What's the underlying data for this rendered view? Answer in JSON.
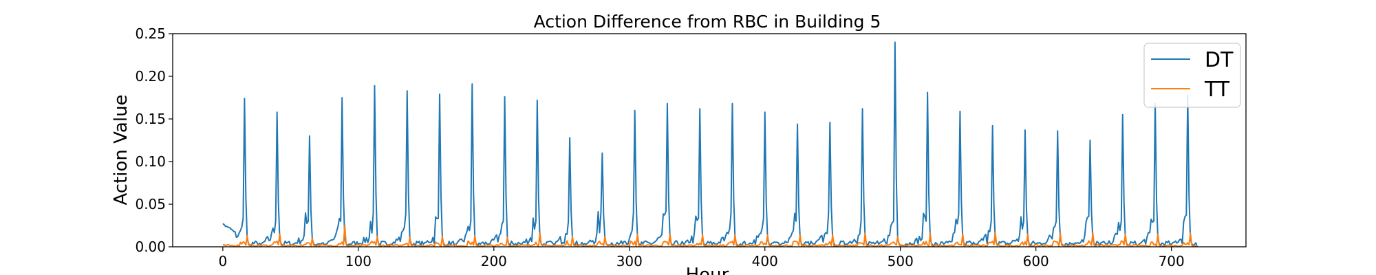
{
  "chart_data": {
    "type": "line",
    "title": "Action Difference from RBC in Building 5",
    "xlabel": "Hour",
    "ylabel": "Action Value",
    "xlim": [
      -37,
      755
    ],
    "ylim": [
      0,
      0.25
    ],
    "x_ticks": [
      "0",
      "100",
      "200",
      "300",
      "400",
      "500",
      "600",
      "700"
    ],
    "y_ticks": [
      "0.00",
      "0.05",
      "0.10",
      "0.15",
      "0.20",
      "0.25"
    ],
    "grid": false,
    "legend_position": "top-right",
    "x_range": [
      0,
      719
    ],
    "peaks": {
      "DT": [
        {
          "x": 16,
          "y": 0.174
        },
        {
          "x": 40,
          "y": 0.158
        },
        {
          "x": 64,
          "y": 0.13
        },
        {
          "x": 88,
          "y": 0.175
        },
        {
          "x": 112,
          "y": 0.189
        },
        {
          "x": 136,
          "y": 0.183
        },
        {
          "x": 160,
          "y": 0.179
        },
        {
          "x": 184,
          "y": 0.191
        },
        {
          "x": 208,
          "y": 0.176
        },
        {
          "x": 232,
          "y": 0.172
        },
        {
          "x": 256,
          "y": 0.128
        },
        {
          "x": 280,
          "y": 0.11
        },
        {
          "x": 304,
          "y": 0.16
        },
        {
          "x": 328,
          "y": 0.168
        },
        {
          "x": 352,
          "y": 0.162
        },
        {
          "x": 376,
          "y": 0.168
        },
        {
          "x": 400,
          "y": 0.158
        },
        {
          "x": 424,
          "y": 0.144
        },
        {
          "x": 448,
          "y": 0.146
        },
        {
          "x": 472,
          "y": 0.162
        },
        {
          "x": 496,
          "y": 0.24
        },
        {
          "x": 520,
          "y": 0.181
        },
        {
          "x": 544,
          "y": 0.159
        },
        {
          "x": 568,
          "y": 0.142
        },
        {
          "x": 592,
          "y": 0.137
        },
        {
          "x": 616,
          "y": 0.136
        },
        {
          "x": 640,
          "y": 0.125
        },
        {
          "x": 664,
          "y": 0.155
        },
        {
          "x": 688,
          "y": 0.168
        },
        {
          "x": 712,
          "y": 0.178
        }
      ],
      "TT": [
        {
          "x": 18,
          "y": 0.013
        },
        {
          "x": 42,
          "y": 0.015
        },
        {
          "x": 66,
          "y": 0.01
        },
        {
          "x": 90,
          "y": 0.025
        },
        {
          "x": 114,
          "y": 0.012
        },
        {
          "x": 138,
          "y": 0.011
        },
        {
          "x": 162,
          "y": 0.012
        },
        {
          "x": 186,
          "y": 0.013
        },
        {
          "x": 210,
          "y": 0.011
        },
        {
          "x": 234,
          "y": 0.016
        },
        {
          "x": 258,
          "y": 0.012
        },
        {
          "x": 282,
          "y": 0.012
        },
        {
          "x": 306,
          "y": 0.015
        },
        {
          "x": 330,
          "y": 0.015
        },
        {
          "x": 354,
          "y": 0.014
        },
        {
          "x": 378,
          "y": 0.014
        },
        {
          "x": 402,
          "y": 0.014
        },
        {
          "x": 426,
          "y": 0.014
        },
        {
          "x": 450,
          "y": 0.014
        },
        {
          "x": 474,
          "y": 0.016
        },
        {
          "x": 498,
          "y": 0.012
        },
        {
          "x": 522,
          "y": 0.016
        },
        {
          "x": 546,
          "y": 0.015
        },
        {
          "x": 570,
          "y": 0.017
        },
        {
          "x": 594,
          "y": 0.015
        },
        {
          "x": 618,
          "y": 0.016
        },
        {
          "x": 642,
          "y": 0.016
        },
        {
          "x": 666,
          "y": 0.015
        },
        {
          "x": 690,
          "y": 0.015
        },
        {
          "x": 714,
          "y": 0.016
        }
      ]
    },
    "series": [
      {
        "name": "DT",
        "color": "#1f77b4"
      },
      {
        "name": "TT",
        "color": "#ff7f0e"
      }
    ]
  }
}
